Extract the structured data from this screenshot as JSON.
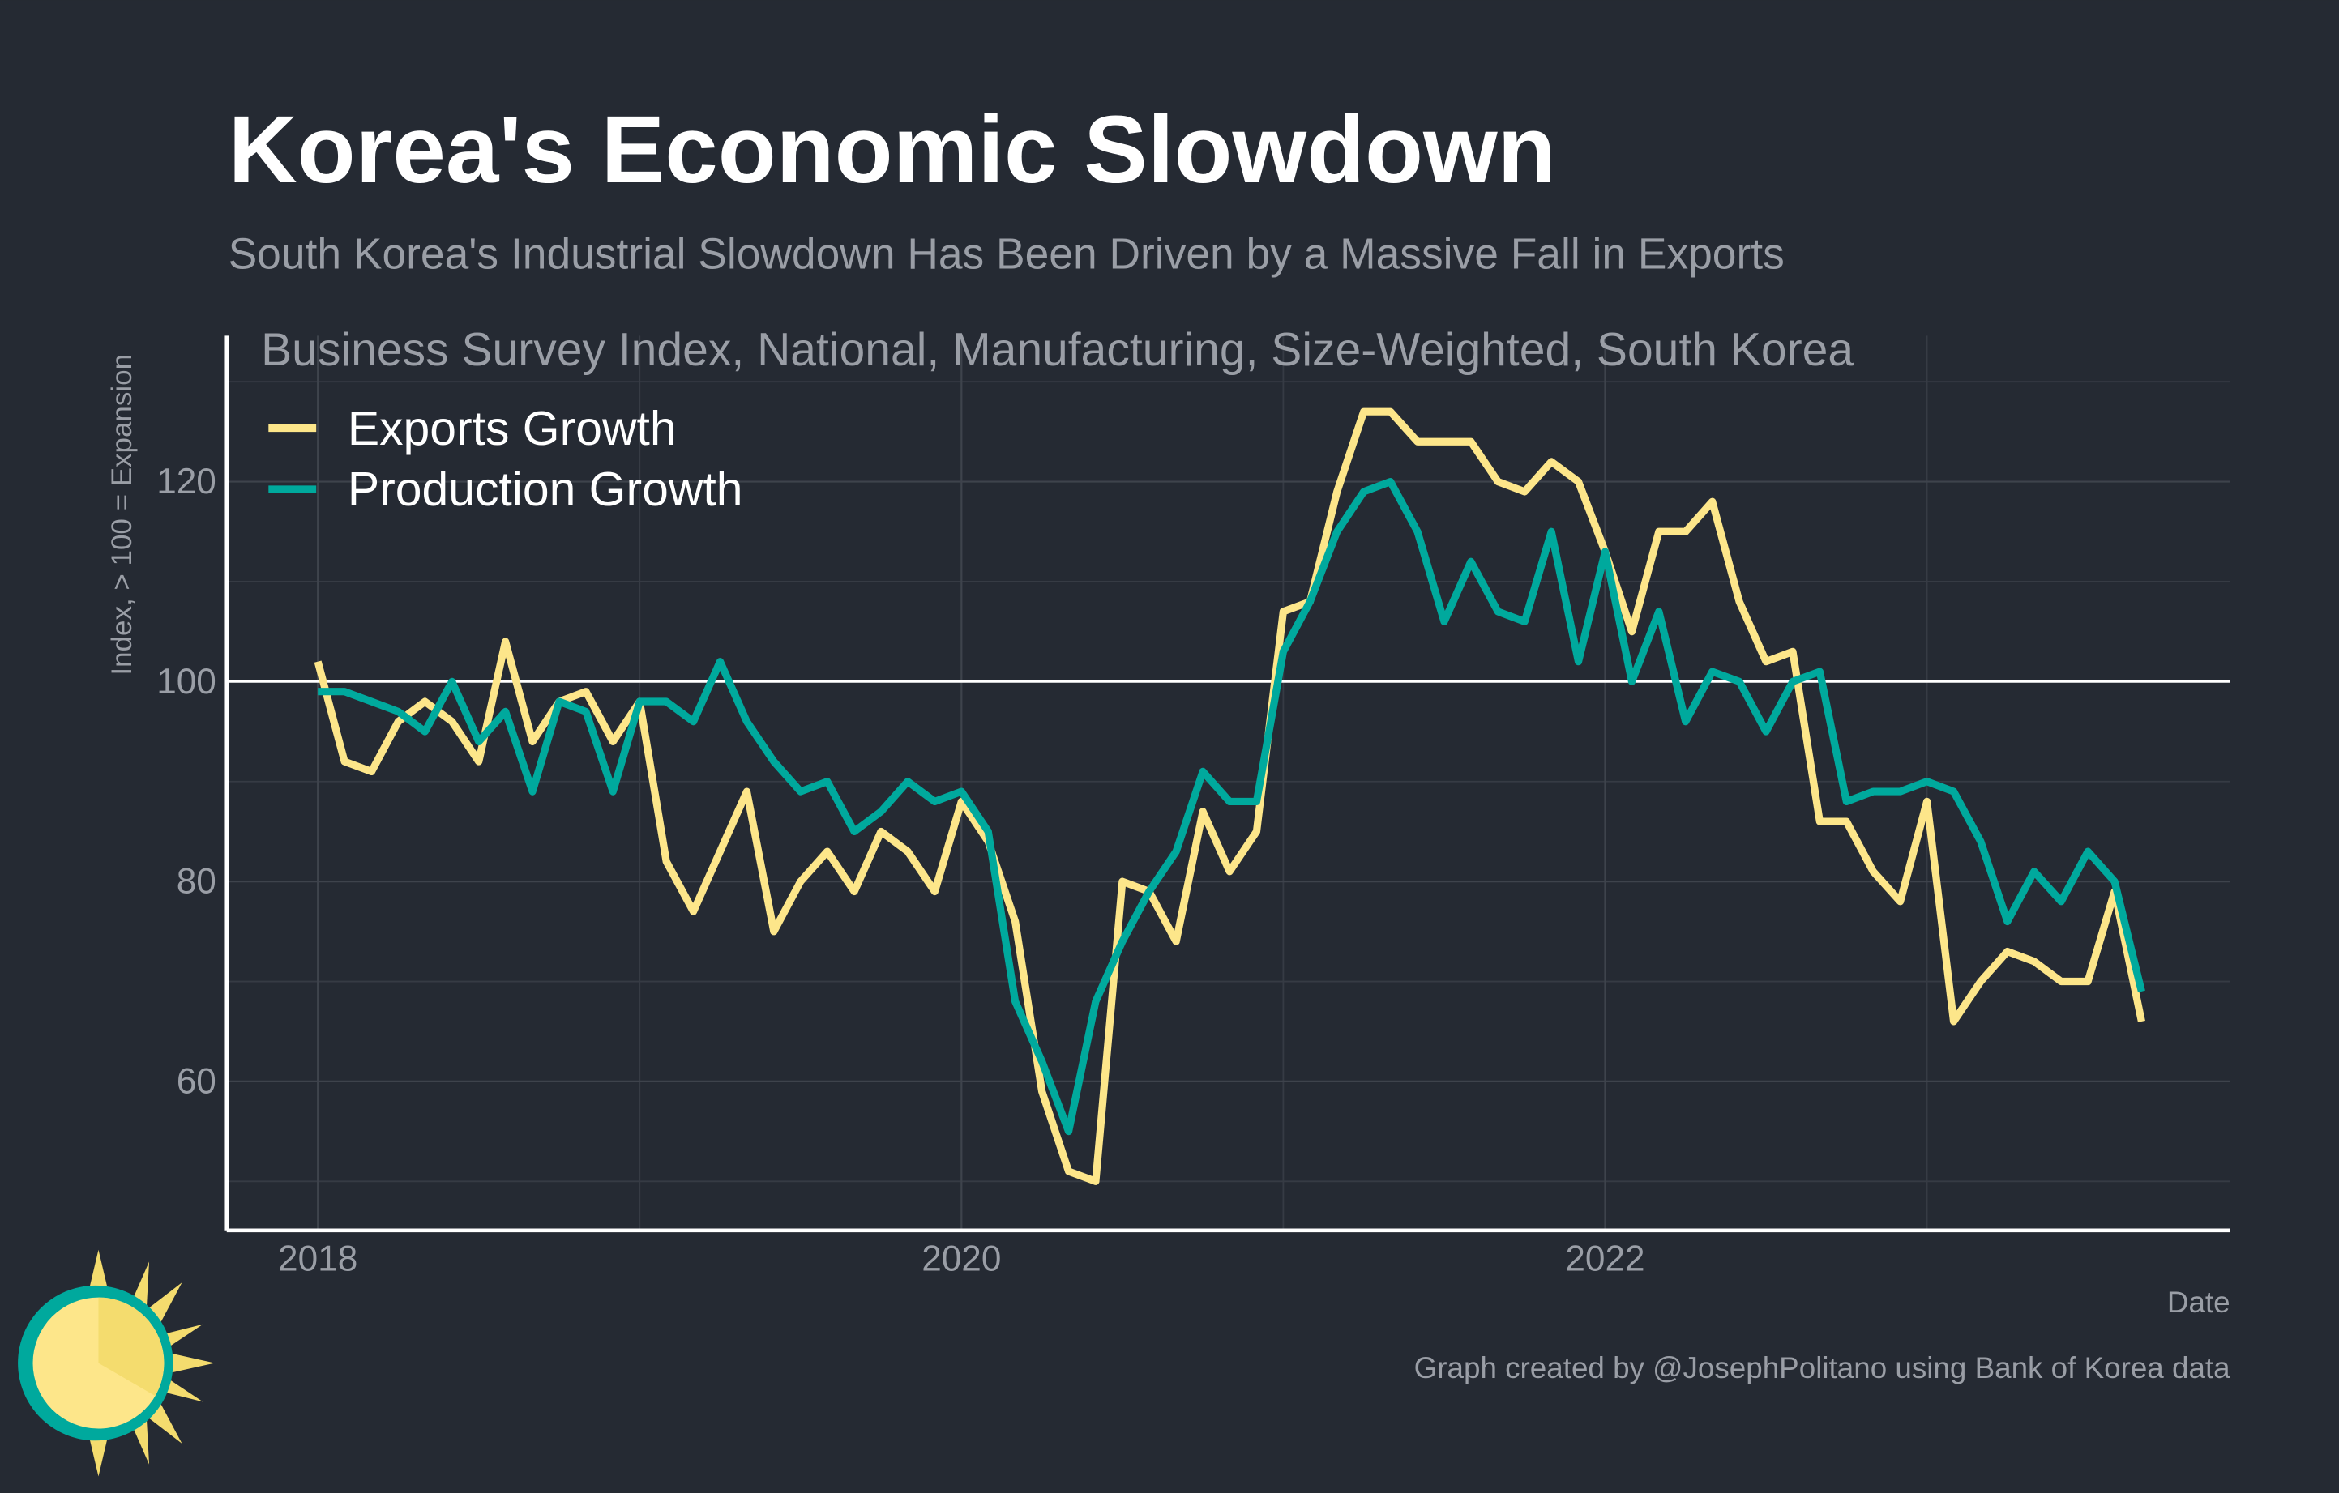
{
  "chart_data": {
    "type": "line",
    "title": "Korea's Economic Slowdown",
    "subtitle": "South Korea's Industrial Slowdown Has Been Driven by a Massive Fall in Exports",
    "chart_label": "Business Survey Index, National, Manufacturing, Size-Weighted, South Korea",
    "y_label": "Index, > 100 = Expansion",
    "x_label": "Date",
    "credit": "Graph created by @JosephPolitano using Bank of Korea data",
    "x": [
      2018,
      2018.083,
      2018.167,
      2018.25,
      2018.333,
      2018.417,
      2018.5,
      2018.583,
      2018.667,
      2018.75,
      2018.833,
      2018.917,
      2019,
      2019.083,
      2019.167,
      2019.25,
      2019.333,
      2019.417,
      2019.5,
      2019.583,
      2019.667,
      2019.75,
      2019.833,
      2019.917,
      2020,
      2020.083,
      2020.167,
      2020.25,
      2020.333,
      2020.417,
      2020.5,
      2020.583,
      2020.667,
      2020.75,
      2020.833,
      2020.917,
      2021,
      2021.083,
      2021.167,
      2021.25,
      2021.333,
      2021.417,
      2021.5,
      2021.583,
      2021.667,
      2021.75,
      2021.833,
      2021.917,
      2022,
      2022.083,
      2022.167,
      2022.25,
      2022.333,
      2022.417,
      2022.5,
      2022.583,
      2022.667,
      2022.75,
      2022.833,
      2022.917,
      2023,
      2023.083,
      2023.167,
      2023.25,
      2023.333,
      2023.417,
      2023.5,
      2023.583,
      2023.667
    ],
    "series": [
      {
        "name": "Exports Growth",
        "color": "#fde68a",
        "values": [
          102,
          92,
          91,
          96,
          98,
          96,
          92,
          104,
          94,
          98,
          99,
          94,
          98,
          82,
          77,
          83,
          89,
          75,
          80,
          83,
          79,
          85,
          83,
          79,
          88,
          84,
          76,
          59,
          51,
          50,
          80,
          79,
          74,
          87,
          81,
          85,
          107,
          108,
          119,
          127,
          127,
          124,
          124,
          124,
          120,
          119,
          122,
          120,
          113,
          105,
          115,
          115,
          118,
          108,
          102,
          103,
          86,
          86,
          81,
          78,
          88,
          66,
          70,
          73,
          72,
          70,
          70,
          79,
          66
        ]
      },
      {
        "name": "Production Growth",
        "color": "#00a99d",
        "values": [
          99,
          99,
          98,
          97,
          95,
          100,
          94,
          97,
          89,
          98,
          97,
          89,
          98,
          98,
          96,
          102,
          96,
          92,
          89,
          90,
          85,
          87,
          90,
          88,
          89,
          85,
          68,
          62,
          55,
          68,
          74,
          79,
          83,
          91,
          88,
          88,
          103,
          108,
          115,
          119,
          120,
          115,
          106,
          112,
          107,
          106,
          115,
          102,
          113,
          100,
          107,
          96,
          101,
          100,
          95,
          100,
          101,
          88,
          89,
          89,
          90,
          89,
          84,
          76,
          81,
          78,
          83,
          80,
          69
        ]
      }
    ],
    "xlim": [
      2017.717,
      2023.942
    ],
    "xticks": [
      2018,
      2020,
      2022
    ],
    "xminor": [
      2019,
      2021,
      2023
    ],
    "ylim": [
      45.1,
      134.6
    ],
    "yticks": [
      60,
      80,
      100,
      120
    ],
    "yminor": [
      50,
      70,
      90,
      110,
      130
    ],
    "reference_line": 100,
    "grid": true,
    "legend": "top-left"
  }
}
